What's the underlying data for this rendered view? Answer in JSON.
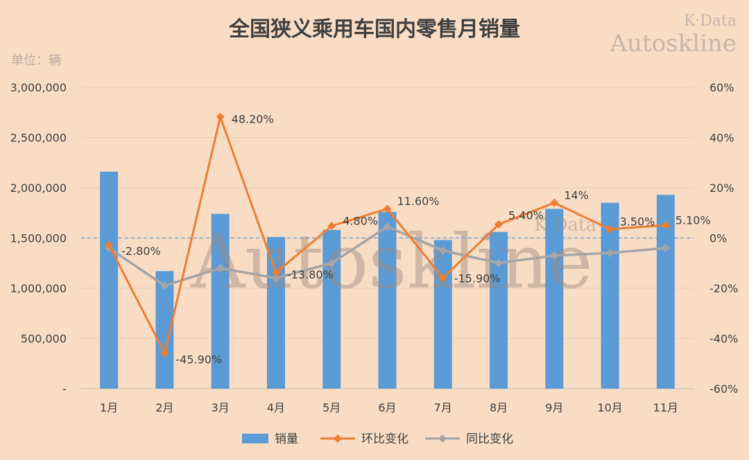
{
  "watermark": {
    "brand_small": "K·Data",
    "brand_large": "Autoskline",
    "center": "Autoskline",
    "center_small": "K·Data"
  },
  "chart_data": {
    "type": "bar",
    "title": "全国狭义乘用车国内零售月销量",
    "unit_label": "单位：辆",
    "categories": [
      "1月",
      "2月",
      "3月",
      "4月",
      "5月",
      "6月",
      "7月",
      "8月",
      "9月",
      "10月",
      "11月"
    ],
    "bars": {
      "name": "销量",
      "values": [
        2160000,
        1170000,
        1740000,
        1510000,
        1580000,
        1760000,
        1480000,
        1560000,
        1790000,
        1850000,
        1930000
      ],
      "color": "#5b9bd5"
    },
    "lines": [
      {
        "name": "环比变化",
        "color": "#ed7d31",
        "values": [
          -2.8,
          -45.9,
          48.2,
          -13.8,
          4.8,
          11.6,
          -15.9,
          5.4,
          14.0,
          3.5,
          5.1
        ],
        "labels": [
          "-2.80%",
          "-45.90%",
          "48.20%",
          "-13.80%",
          "4.80%",
          "11.60%",
          "-15.90%",
          "5.40%",
          "14%",
          "3.50%",
          "5.10%"
        ]
      },
      {
        "name": "同比变化",
        "color": "#a5a5a5",
        "values": [
          -4,
          -19,
          -12,
          -16,
          -10,
          4.5,
          -5,
          -10,
          -7,
          -6,
          -4
        ]
      }
    ],
    "y_left": {
      "min": 0,
      "max": 3000000,
      "ticks": [
        0,
        500000,
        1000000,
        1500000,
        2000000,
        2500000,
        3000000
      ],
      "tick_labels": [
        "-",
        "500,000",
        "1,000,000",
        "1,500,000",
        "2,000,000",
        "2,500,000",
        "3,000,000"
      ]
    },
    "y_right": {
      "min": -60,
      "max": 60,
      "ticks": [
        -60,
        -40,
        -20,
        0,
        20,
        40,
        60
      ],
      "tick_labels": [
        "-60%",
        "-40%",
        "-20%",
        "0%",
        "20%",
        "40%",
        "60%"
      ]
    },
    "reference_line": {
      "value_pct": 0,
      "style": "dashed",
      "color": "#5b9bd5"
    },
    "legend": {
      "position": "bottom",
      "items": [
        "销量",
        "环比变化",
        "同比变化"
      ]
    },
    "grid": true
  }
}
